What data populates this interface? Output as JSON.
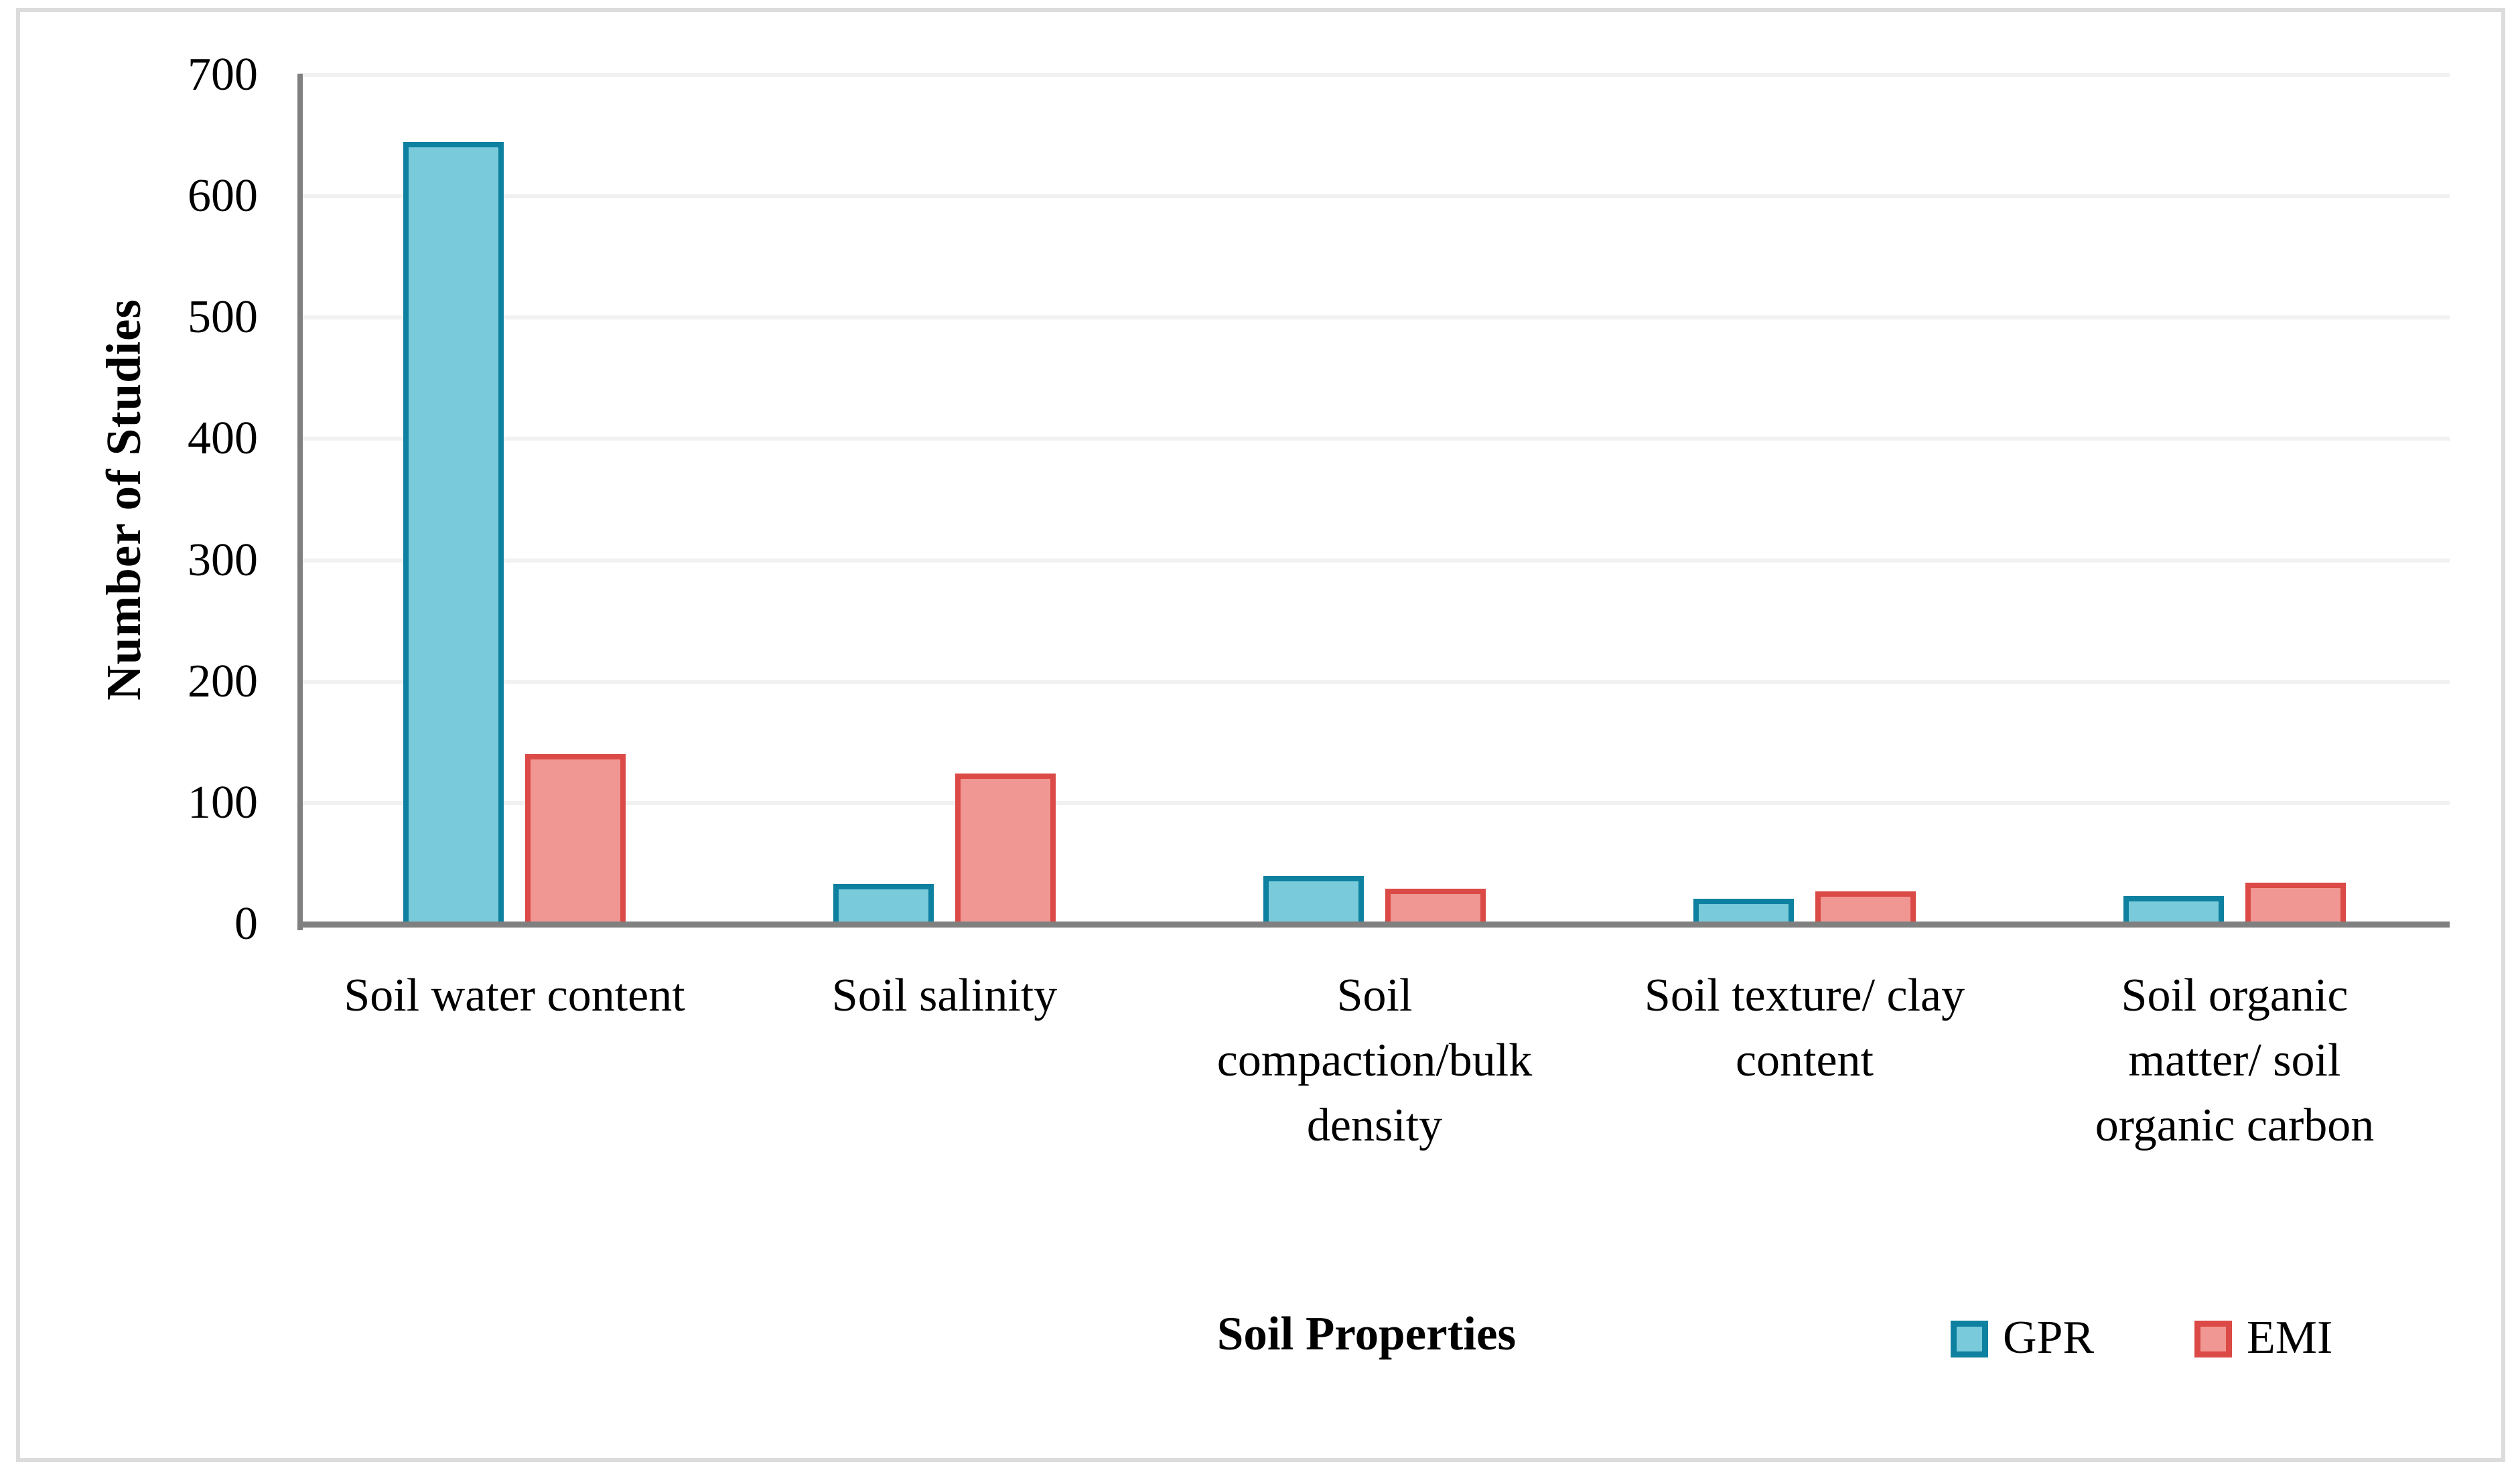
{
  "figure": {
    "xlabel": "Soil Properties",
    "ylabel": "Number of Studies"
  },
  "legend": {
    "items": [
      {
        "label": "GPR",
        "fill": "#79cbdb",
        "border": "#0f81a0"
      },
      {
        "label": "EMI",
        "fill": "#f09793",
        "border": "#db4a46"
      }
    ]
  },
  "chart_data": {
    "type": "bar",
    "title": "",
    "xlabel": "Soil Properties",
    "ylabel": "Number of Studies",
    "ylim": [
      0,
      700
    ],
    "yticks": [
      0,
      100,
      200,
      300,
      400,
      500,
      600,
      700
    ],
    "grid": true,
    "legend_position": "bottom-right",
    "categories": [
      "Soil water content",
      "Soil salinity",
      "Soil compaction/bulk density",
      "Soil texture/ clay content",
      "Soil organic matter/ soil organic carbon"
    ],
    "categories_wrapped": [
      [
        "Soil water content"
      ],
      [
        "Soil salinity"
      ],
      [
        "Soil",
        "compaction/bulk",
        "density"
      ],
      [
        "Soil texture/ clay",
        "content"
      ],
      [
        "Soil organic",
        "matter/ soil",
        "organic carbon"
      ]
    ],
    "series": [
      {
        "name": "GPR",
        "fill": "#79cbdb",
        "border": "#0f81a0",
        "values": [
          645,
          33,
          40,
          21,
          23
        ]
      },
      {
        "name": "EMI",
        "fill": "#f09793",
        "border": "#db4a46",
        "values": [
          140,
          124,
          29,
          27,
          34
        ]
      }
    ],
    "colors": {
      "axis": "#808080",
      "gridline": "#f1f1f1",
      "frame": "#dcdcdc",
      "text": "#000000"
    }
  }
}
